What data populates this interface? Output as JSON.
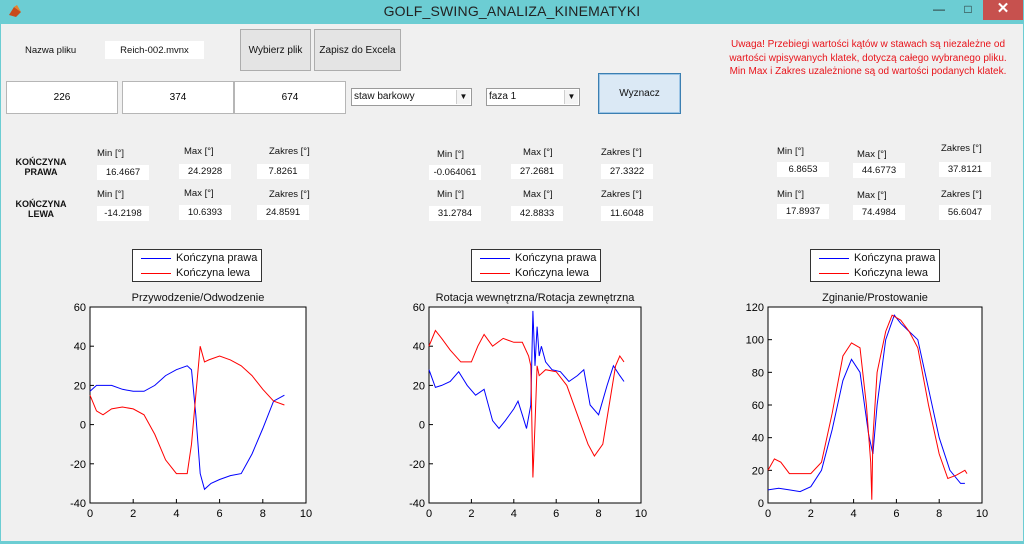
{
  "window": {
    "title": "GOLF_SWING_ANALIZA_KINEMATYKI",
    "minimize": "—",
    "maximize": "□",
    "close": "✕"
  },
  "file": {
    "label": "Nazwa pliku",
    "value": "Reich-002.mvnx"
  },
  "buttons": {
    "choose": "Wybierz plik",
    "save": "Zapisz do Excela",
    "compute": "Wyznacz"
  },
  "frames": [
    "226",
    "374",
    "674"
  ],
  "joint_select": {
    "selected": "staw barkowy"
  },
  "phase_select": {
    "selected": "faza 1"
  },
  "warning": "Uwaga! Przebiegi wartości kątów w stawach są niezależne od wartości wpisywanych klatek, dotyczą całego wybranego pliku. Min Max i Zakres uzależnione są od wartości podanych klatek.",
  "row_labels": {
    "right": [
      "KOŃCZYNA",
      "PRAWA"
    ],
    "left": [
      "KOŃCZYNA",
      "LEWA"
    ]
  },
  "stat_headers": {
    "min": "Min [°]",
    "max": "Max [°]",
    "range": "Zakres [°]"
  },
  "stats": [
    {
      "right": {
        "min": "16.4667",
        "max": "24.2928",
        "range": "7.8261"
      },
      "left": {
        "min": "-14.2198",
        "max": "10.6393",
        "range": "24.8591"
      }
    },
    {
      "right": {
        "min": "-0.064061",
        "max": "27.2681",
        "range": "27.3322"
      },
      "left": {
        "min": "31.2784",
        "max": "42.8833",
        "range": "11.6048"
      }
    },
    {
      "right": {
        "min": "6.8653",
        "max": "44.6773",
        "range": "37.8121"
      },
      "left": {
        "min": "17.8937",
        "max": "74.4984",
        "range": "56.6047"
      }
    }
  ],
  "legend": {
    "right": "Kończyna prawa",
    "left": "Kończyna lewa"
  },
  "colors": {
    "right": "#0000ff",
    "left": "#ff0000"
  },
  "chart_data": [
    {
      "type": "line",
      "title": "Przywodzenie/Odwodzenie",
      "xlim": [
        0,
        10
      ],
      "ylim": [
        -40,
        60
      ],
      "xticks": [
        0,
        2,
        4,
        6,
        8,
        10
      ],
      "yticks": [
        -40,
        -20,
        0,
        20,
        40,
        60
      ],
      "series": [
        {
          "name": "Kończyna prawa",
          "color": "#0000ff",
          "points": [
            [
              0,
              17
            ],
            [
              0.3,
              20
            ],
            [
              1,
              20
            ],
            [
              1.5,
              18
            ],
            [
              2,
              17
            ],
            [
              2.5,
              17
            ],
            [
              3,
              20
            ],
            [
              3.5,
              25
            ],
            [
              4,
              28
            ],
            [
              4.5,
              30
            ],
            [
              4.7,
              28
            ],
            [
              4.9,
              5
            ],
            [
              5.1,
              -25
            ],
            [
              5.3,
              -33
            ],
            [
              5.6,
              -30
            ],
            [
              6,
              -28
            ],
            [
              6.5,
              -26
            ],
            [
              7,
              -25
            ],
            [
              7.5,
              -15
            ],
            [
              8,
              -2
            ],
            [
              8.5,
              12
            ],
            [
              9,
              15
            ]
          ]
        },
        {
          "name": "Kończyna lewa",
          "color": "#ff0000",
          "points": [
            [
              0,
              15
            ],
            [
              0.3,
              7
            ],
            [
              0.6,
              5
            ],
            [
              1,
              8
            ],
            [
              1.5,
              9
            ],
            [
              2,
              8
            ],
            [
              2.5,
              5
            ],
            [
              3,
              -5
            ],
            [
              3.5,
              -18
            ],
            [
              4,
              -25
            ],
            [
              4.5,
              -25
            ],
            [
              4.7,
              -10
            ],
            [
              4.9,
              15
            ],
            [
              5.1,
              40
            ],
            [
              5.3,
              32
            ],
            [
              5.5,
              33
            ],
            [
              6,
              35
            ],
            [
              6.5,
              33
            ],
            [
              7,
              30
            ],
            [
              7.5,
              25
            ],
            [
              8,
              18
            ],
            [
              8.5,
              12
            ],
            [
              9,
              10
            ]
          ]
        }
      ]
    },
    {
      "type": "line",
      "title": "Rotacja wewnętrzna/Rotacja zewnętrzna",
      "xlim": [
        0,
        10
      ],
      "ylim": [
        -40,
        60
      ],
      "xticks": [
        0,
        2,
        4,
        6,
        8,
        10
      ],
      "yticks": [
        -40,
        -20,
        0,
        20,
        40,
        60
      ],
      "series": [
        {
          "name": "Kończyna prawa",
          "color": "#0000ff",
          "points": [
            [
              0,
              28
            ],
            [
              0.3,
              19
            ],
            [
              0.6,
              20
            ],
            [
              1,
              22
            ],
            [
              1.4,
              27
            ],
            [
              1.8,
              20
            ],
            [
              2.2,
              15
            ],
            [
              2.6,
              18
            ],
            [
              3,
              2
            ],
            [
              3.3,
              -2
            ],
            [
              3.6,
              2
            ],
            [
              4,
              8
            ],
            [
              4.2,
              12
            ],
            [
              4.4,
              5
            ],
            [
              4.6,
              -2
            ],
            [
              4.8,
              10
            ],
            [
              4.9,
              58
            ],
            [
              5.0,
              30
            ],
            [
              5.1,
              50
            ],
            [
              5.2,
              35
            ],
            [
              5.3,
              40
            ],
            [
              5.5,
              32
            ],
            [
              5.8,
              28
            ],
            [
              6.2,
              27
            ],
            [
              6.6,
              22
            ],
            [
              7,
              25
            ],
            [
              7.3,
              28
            ],
            [
              7.6,
              10
            ],
            [
              8,
              5
            ],
            [
              8.4,
              20
            ],
            [
              8.7,
              30
            ],
            [
              9,
              25
            ],
            [
              9.2,
              22
            ]
          ]
        },
        {
          "name": "Kończyna lewa",
          "color": "#ff0000",
          "points": [
            [
              0,
              40
            ],
            [
              0.3,
              48
            ],
            [
              0.6,
              44
            ],
            [
              1,
              38
            ],
            [
              1.5,
              32
            ],
            [
              2,
              32
            ],
            [
              2.3,
              40
            ],
            [
              2.6,
              46
            ],
            [
              3,
              40
            ],
            [
              3.5,
              44
            ],
            [
              4,
              42
            ],
            [
              4.4,
              42
            ],
            [
              4.7,
              35
            ],
            [
              4.8,
              30
            ],
            [
              4.9,
              -27
            ],
            [
              5.0,
              0
            ],
            [
              5.1,
              30
            ],
            [
              5.2,
              25
            ],
            [
              5.5,
              28
            ],
            [
              6,
              27
            ],
            [
              6.5,
              20
            ],
            [
              7,
              5
            ],
            [
              7.5,
              -10
            ],
            [
              7.8,
              -16
            ],
            [
              8.2,
              -10
            ],
            [
              8.5,
              10
            ],
            [
              8.8,
              30
            ],
            [
              9,
              35
            ],
            [
              9.2,
              32
            ]
          ]
        }
      ]
    },
    {
      "type": "line",
      "title": "Zginanie/Prostowanie",
      "xlim": [
        0,
        10
      ],
      "ylim": [
        0,
        120
      ],
      "xticks": [
        0,
        2,
        4,
        6,
        8,
        10
      ],
      "yticks": [
        0,
        20,
        40,
        60,
        80,
        100,
        120
      ],
      "series": [
        {
          "name": "Kończyna prawa",
          "color": "#0000ff",
          "points": [
            [
              0,
              8
            ],
            [
              0.5,
              9
            ],
            [
              1,
              8
            ],
            [
              1.5,
              7
            ],
            [
              2,
              10
            ],
            [
              2.5,
              20
            ],
            [
              3,
              45
            ],
            [
              3.5,
              75
            ],
            [
              3.9,
              88
            ],
            [
              4.3,
              80
            ],
            [
              4.7,
              42
            ],
            [
              4.9,
              30
            ],
            [
              5.1,
              60
            ],
            [
              5.5,
              100
            ],
            [
              5.9,
              115
            ],
            [
              6.2,
              110
            ],
            [
              6.6,
              105
            ],
            [
              7,
              100
            ],
            [
              7.5,
              70
            ],
            [
              8,
              40
            ],
            [
              8.5,
              20
            ],
            [
              9,
              12
            ],
            [
              9.2,
              12
            ]
          ]
        },
        {
          "name": "Kończyna lewa",
          "color": "#ff0000",
          "points": [
            [
              0,
              20
            ],
            [
              0.3,
              27
            ],
            [
              0.6,
              25
            ],
            [
              1,
              18
            ],
            [
              2,
              18
            ],
            [
              2.5,
              25
            ],
            [
              3,
              55
            ],
            [
              3.5,
              90
            ],
            [
              3.9,
              98
            ],
            [
              4.3,
              95
            ],
            [
              4.6,
              60
            ],
            [
              4.8,
              25
            ],
            [
              4.85,
              2
            ],
            [
              4.9,
              40
            ],
            [
              5.1,
              80
            ],
            [
              5.5,
              105
            ],
            [
              5.8,
              115
            ],
            [
              6.2,
              112
            ],
            [
              6.6,
              105
            ],
            [
              7,
              95
            ],
            [
              7.5,
              60
            ],
            [
              8,
              30
            ],
            [
              8.4,
              15
            ],
            [
              8.8,
              17
            ],
            [
              9.2,
              20
            ],
            [
              9.3,
              18
            ]
          ]
        }
      ]
    }
  ]
}
